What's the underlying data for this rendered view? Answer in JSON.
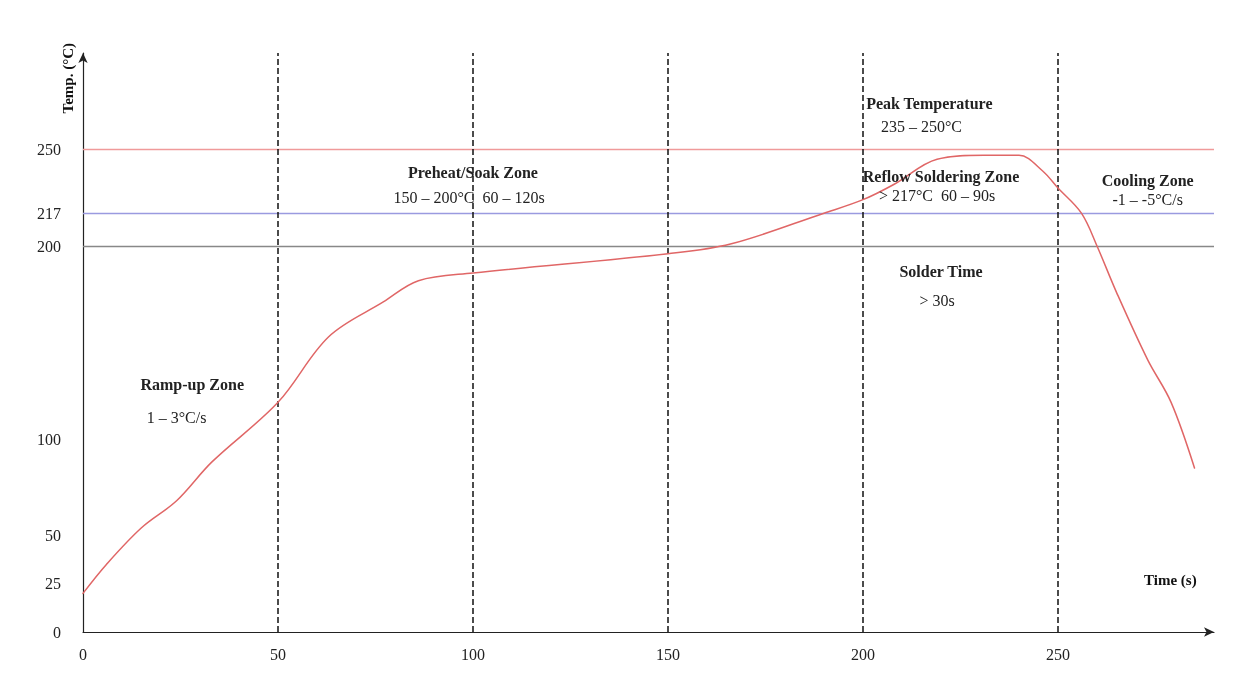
{
  "chart_data": {
    "type": "line",
    "xlabel": "Time (s)",
    "ylabel": "Temp. (°C)",
    "xlim": [
      0,
      290
    ],
    "ylim": [
      0,
      300
    ],
    "xticks": [
      0,
      50,
      100,
      150,
      200,
      250
    ],
    "yticks": [
      0,
      25,
      50,
      100,
      200,
      217,
      250
    ],
    "marker": "none",
    "line_style": "solid",
    "series": [
      {
        "color": "#e06666",
        "x": [
          0,
          6,
          15,
          24,
          33,
          50,
          63,
          77,
          86,
          100,
          150,
          166,
          190,
          200,
          208,
          219,
          231,
          240,
          246,
          250,
          256,
          260,
          265,
          273,
          279,
          285
        ],
        "values": [
          20,
          35,
          54,
          68,
          88,
          119,
          153,
          171,
          182,
          186,
          196,
          201,
          217,
          224,
          232,
          245,
          247,
          247,
          239,
          230,
          217,
          200,
          176,
          141,
          119,
          85
        ]
      }
    ],
    "ref_lines": [
      {
        "axis": "y",
        "value": 250,
        "color": "#f09a9a",
        "line_style": "solid"
      },
      {
        "axis": "y",
        "value": 217,
        "color": "#9a9ae0",
        "line_style": "solid"
      },
      {
        "axis": "y",
        "value": 200,
        "color": "#888888",
        "line_style": "solid"
      },
      {
        "axis": "x",
        "value": 50,
        "color": "#111111",
        "line_style": "dashed"
      },
      {
        "axis": "x",
        "value": 100,
        "color": "#111111",
        "line_style": "dashed"
      },
      {
        "axis": "x",
        "value": 150,
        "color": "#111111",
        "line_style": "dashed"
      },
      {
        "axis": "x",
        "value": 200,
        "color": "#111111",
        "line_style": "dashed"
      },
      {
        "axis": "x",
        "value": 250,
        "color": "#111111",
        "line_style": "dashed"
      }
    ],
    "annotations": [
      "Ramp-up Zone",
      "1 – 3°C/s",
      "Preheat/Soak Zone",
      "150 – 200°C  60 – 120s",
      "Peak Temperature",
      "235 – 250°C",
      "Reflow Soldering Zone",
      "> 217°C  60 – 90s",
      "Solder Time",
      "> 30s",
      "Cooling Zone",
      "-1 – -5°C/s"
    ]
  }
}
